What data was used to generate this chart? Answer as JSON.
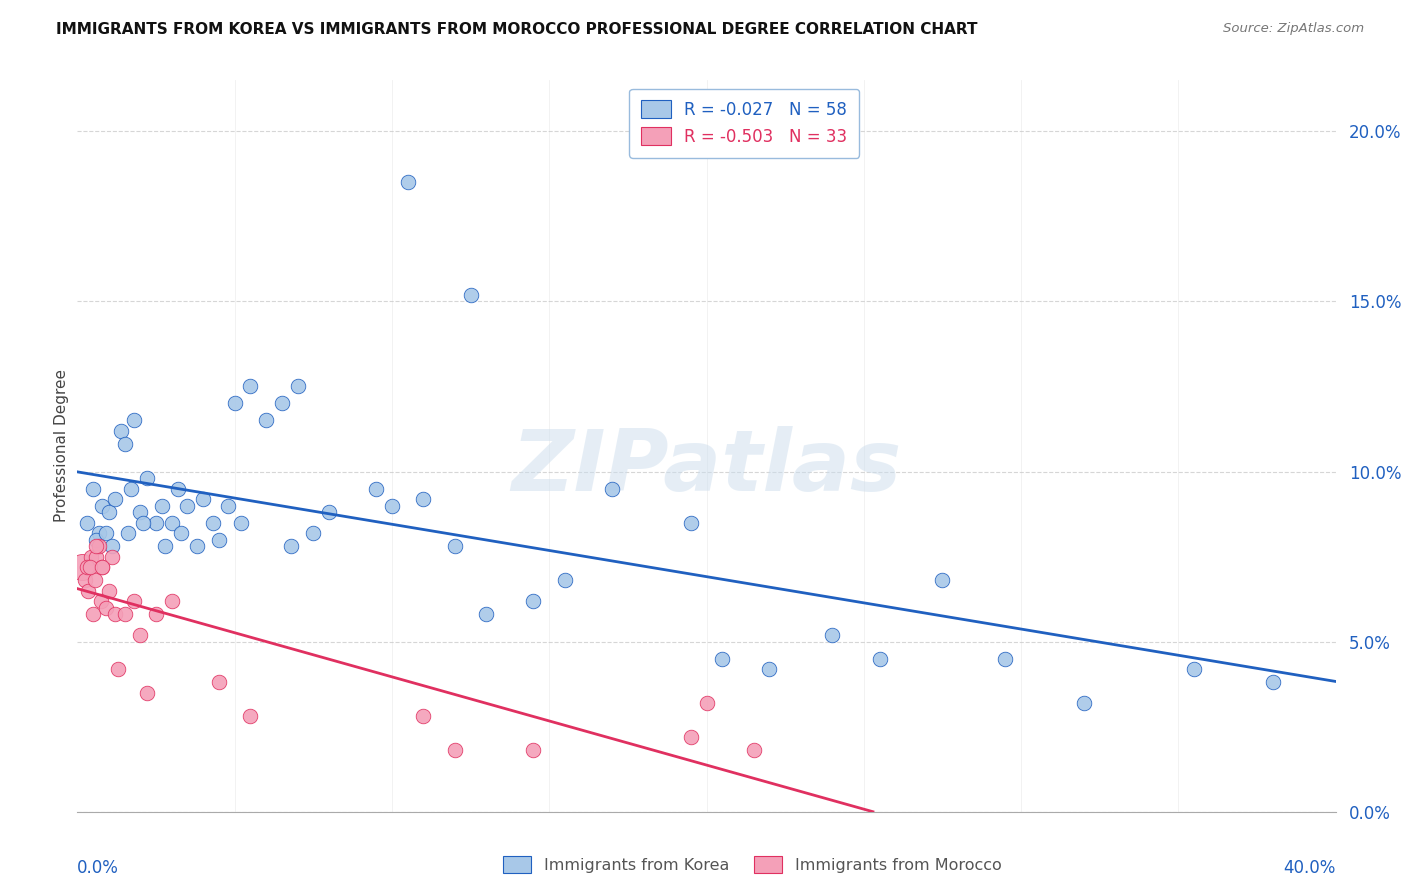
{
  "title": "IMMIGRANTS FROM KOREA VS IMMIGRANTS FROM MOROCCO PROFESSIONAL DEGREE CORRELATION CHART",
  "source": "Source: ZipAtlas.com",
  "ylabel": "Professional Degree",
  "ytick_vals": [
    0.0,
    5.0,
    10.0,
    15.0,
    20.0
  ],
  "ytick_labels": [
    "0.0%",
    "5.0%",
    "10.0%",
    "15.0%",
    "20.0%"
  ],
  "xmin": 0.0,
  "xmax": 40.0,
  "ymin": 0.0,
  "ymax": 21.5,
  "korea_R": "-0.027",
  "korea_N": "58",
  "morocco_R": "-0.503",
  "morocco_N": "33",
  "korea_color": "#a8c8e8",
  "morocco_color": "#f4a0b8",
  "korea_line_color": "#2060c0",
  "morocco_line_color": "#e03060",
  "watermark": "ZIPatlas",
  "korea_x": [
    0.3,
    0.5,
    0.7,
    0.8,
    1.0,
    1.2,
    1.4,
    1.5,
    1.7,
    1.8,
    2.0,
    2.2,
    2.5,
    2.7,
    3.0,
    3.2,
    3.5,
    3.8,
    4.0,
    4.3,
    4.8,
    5.0,
    5.5,
    6.0,
    6.5,
    7.0,
    8.0,
    9.5,
    10.0,
    11.0,
    12.0,
    13.0,
    14.5,
    15.5,
    17.0,
    19.5,
    20.5,
    22.0,
    24.0,
    25.5,
    27.5,
    29.5,
    32.0,
    35.5,
    38.0,
    0.6,
    0.9,
    1.1,
    1.6,
    2.1,
    2.8,
    3.3,
    4.5,
    5.2,
    6.8,
    7.5,
    10.5,
    12.5
  ],
  "korea_y": [
    8.5,
    9.5,
    8.2,
    9.0,
    8.8,
    9.2,
    11.2,
    10.8,
    9.5,
    11.5,
    8.8,
    9.8,
    8.5,
    9.0,
    8.5,
    9.5,
    9.0,
    7.8,
    9.2,
    8.5,
    9.0,
    12.0,
    12.5,
    11.5,
    12.0,
    12.5,
    8.8,
    9.5,
    9.0,
    9.2,
    7.8,
    5.8,
    6.2,
    6.8,
    9.5,
    8.5,
    4.5,
    4.2,
    5.2,
    4.5,
    6.8,
    4.5,
    3.2,
    4.2,
    3.8,
    8.0,
    8.2,
    7.8,
    8.2,
    8.5,
    7.8,
    8.2,
    8.0,
    8.5,
    7.8,
    8.2,
    18.5,
    15.2
  ],
  "morocco_x": [
    0.15,
    0.25,
    0.35,
    0.45,
    0.5,
    0.55,
    0.6,
    0.7,
    0.75,
    0.8,
    0.9,
    1.0,
    1.1,
    1.2,
    1.5,
    1.8,
    2.0,
    2.5,
    3.0,
    4.5,
    5.5,
    12.0,
    14.5,
    20.0,
    0.3,
    0.4,
    0.6,
    0.8,
    1.3,
    2.2,
    11.0,
    19.5,
    21.5
  ],
  "morocco_y": [
    7.2,
    6.8,
    6.5,
    7.5,
    5.8,
    6.8,
    7.5,
    7.8,
    6.2,
    7.2,
    6.0,
    6.5,
    7.5,
    5.8,
    5.8,
    6.2,
    5.2,
    5.8,
    6.2,
    3.8,
    2.8,
    1.8,
    1.8,
    3.2,
    7.2,
    7.2,
    7.8,
    7.2,
    4.2,
    3.5,
    2.8,
    2.2,
    1.8
  ],
  "morocco_big_idx": 0,
  "morocco_big_size": 350
}
